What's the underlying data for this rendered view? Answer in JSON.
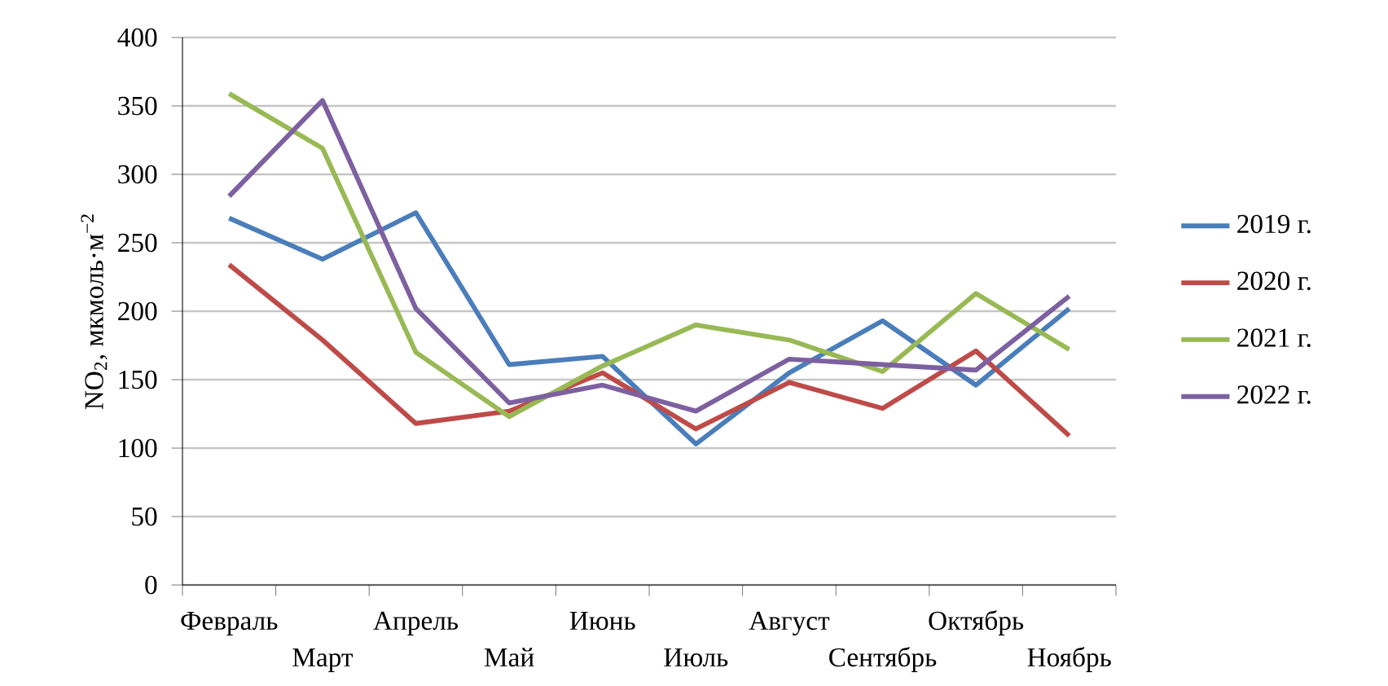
{
  "chart_data": {
    "type": "line",
    "ylabel": "NO$_{2}$, мкмоль·м$^{−2}$",
    "categories": [
      "Февраль",
      "Март",
      "Апрель",
      "Май",
      "Июнь",
      "Июль",
      "Август",
      "Сентябрь",
      "Октябрь",
      "Ноябрь"
    ],
    "series": [
      {
        "name": "2019 г.",
        "color": "#4a7ebb",
        "values": [
          268,
          238,
          272,
          161,
          167,
          103,
          155,
          193,
          146,
          202
        ]
      },
      {
        "name": "2020 г.",
        "color": "#be4b48",
        "values": [
          234,
          179,
          118,
          127,
          155,
          114,
          148,
          129,
          171,
          109
        ]
      },
      {
        "name": "2021 г.",
        "color": "#98b954",
        "values": [
          359,
          319,
          170,
          123,
          160,
          190,
          179,
          156,
          213,
          172
        ]
      },
      {
        "name": "2022 г.",
        "color": "#7d60a0",
        "values": [
          284,
          354,
          202,
          133,
          146,
          127,
          165,
          161,
          157,
          211
        ]
      }
    ],
    "ylim": [
      0,
      400
    ],
    "yticks": [
      0,
      50,
      100,
      150,
      200,
      250,
      300,
      350,
      400
    ],
    "grid": "y",
    "legend": "right",
    "marker": "none",
    "line_style": "solid"
  }
}
